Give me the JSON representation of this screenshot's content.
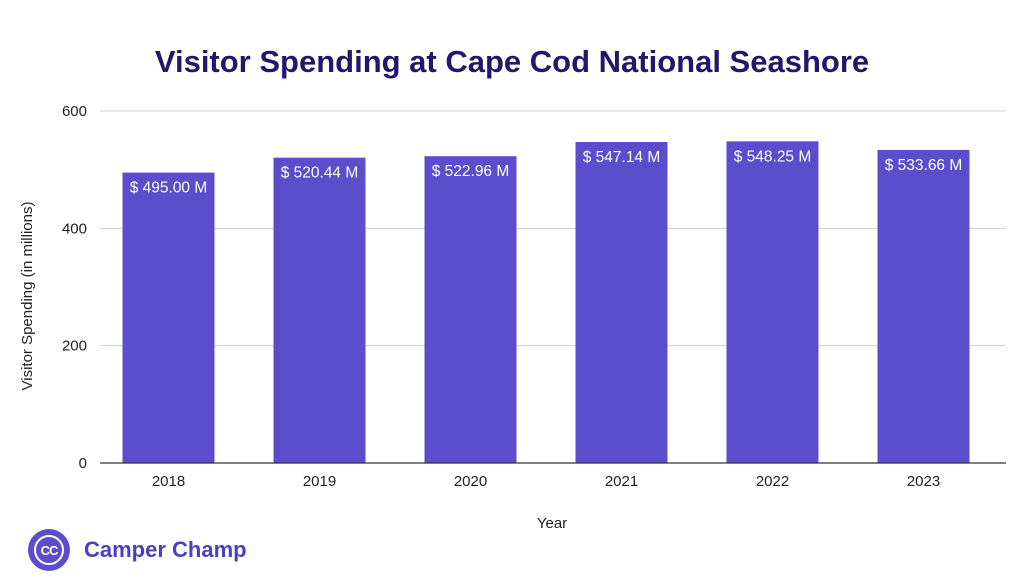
{
  "chart_data": {
    "type": "bar",
    "title": "Visitor Spending at Cape Cod National Seashore",
    "xlabel": "Year",
    "ylabel": "Visitor Spending (in millions)",
    "categories": [
      "2018",
      "2019",
      "2020",
      "2021",
      "2022",
      "2023"
    ],
    "values": [
      495.0,
      520.44,
      522.96,
      547.14,
      548.25,
      533.66
    ],
    "data_labels": [
      "$ 495.00 M",
      "$ 520.44 M",
      "$ 522.96 M",
      "$ 547.14 M",
      "$ 548.25 M",
      "$ 533.66 M"
    ],
    "ylim": [
      0,
      600
    ],
    "yticks": [
      "0",
      "200",
      "400",
      "600"
    ],
    "grid": true,
    "bar_color": "#5b4dcc"
  },
  "brand": {
    "name": "Camper Champ",
    "logo_text": "CC",
    "color": "#4a3fbf"
  },
  "colors": {
    "title": "#22186b"
  }
}
